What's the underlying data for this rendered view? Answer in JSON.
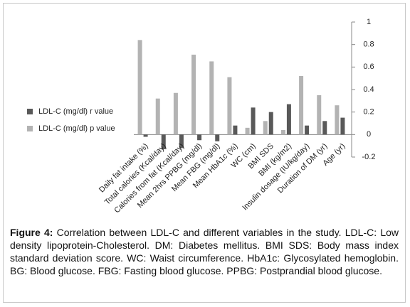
{
  "chart_data": {
    "type": "bar",
    "categories": [
      "Daily fat intake (%)",
      "Total calories (Kcal/day)",
      "Calories from fat (Kcal/day)",
      "Mean 2hrs PPBG (mg/dl)",
      "Mean FBG (mg/dl)",
      "Mean HbA1c (%)",
      "WC (cm)",
      "BMI SDS",
      "BMI (kg/m2)",
      "Insulin dosage (IU/kg/day)",
      "Duration of DM (yr)",
      "Age (yr)"
    ],
    "series": [
      {
        "name": "LDL-C (mg/dl) p value",
        "color": "#b3b3b3",
        "values": [
          0.84,
          0.32,
          0.37,
          0.71,
          0.65,
          0.51,
          0.06,
          0.12,
          0.04,
          0.52,
          0.35,
          0.26
        ]
      },
      {
        "name": "LDL-C (mg/dl) r value",
        "color": "#595959",
        "values": [
          -0.02,
          -0.13,
          -0.12,
          -0.05,
          -0.06,
          0.08,
          0.24,
          0.2,
          0.27,
          0.08,
          0.12,
          0.15
        ]
      }
    ],
    "ylim": [
      -0.2,
      1
    ],
    "yticks": [
      -0.2,
      0,
      0.2,
      0.4,
      0.6,
      0.8,
      1
    ],
    "grid": false,
    "legend": "left"
  },
  "caption": {
    "label": "Figure 4:",
    "text": "Correlation between LDL-C and different variables in the study. LDL-C: Low density lipoprotein-Cholesterol. DM: Diabetes mellitus. BMI SDS: Body mass index standard deviation score. WC: Waist circumference. HbA1c: Glycosylated hemoglobin. BG: Blood glucose. FBG: Fasting blood glucose. PPBG: Postprandial blood glucose."
  }
}
